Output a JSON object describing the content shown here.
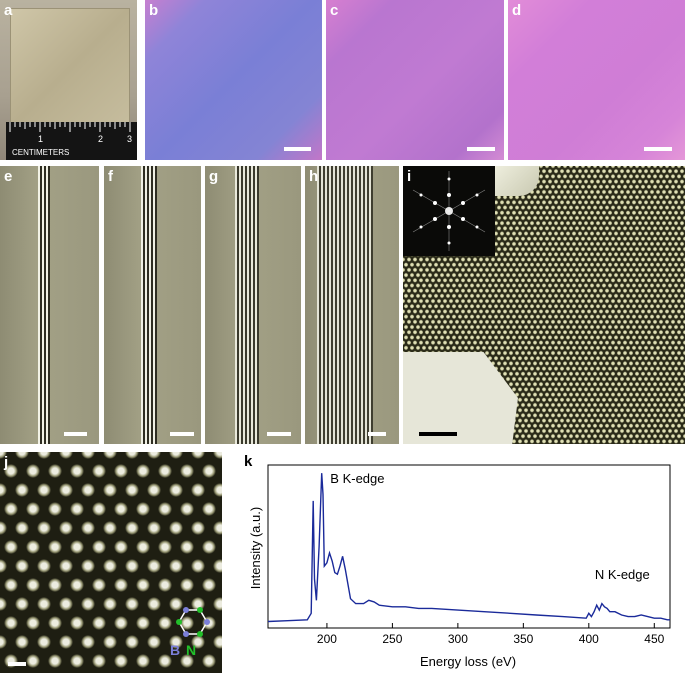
{
  "panels": {
    "a": {
      "label": "a",
      "ruler_text": "CENTIMETERS",
      "ruler_ticks": [
        "1",
        "2",
        "3"
      ]
    },
    "b": {
      "label": "b"
    },
    "c": {
      "label": "c"
    },
    "d": {
      "label": "d"
    },
    "e": {
      "label": "e"
    },
    "f": {
      "label": "f"
    },
    "g": {
      "label": "g"
    },
    "h": {
      "label": "h"
    },
    "i": {
      "label": "i"
    },
    "j": {
      "label": "j",
      "atom_b": "B",
      "atom_n": "N"
    },
    "k": {
      "label": "k"
    }
  },
  "colors": {
    "optical_blue": "#7f7fd4",
    "optical_magenta": "#c276d0",
    "optical_pink": "#d27ed8",
    "spectrum_line": "#1a2a9a",
    "boron_atom": "#7b7fd8",
    "nitrogen_atom": "#22c02a"
  },
  "chart_data": {
    "type": "line",
    "title": "",
    "xlabel": "Energy loss (eV)",
    "ylabel": "Intensity (a.u.)",
    "xlim": [
      155,
      462
    ],
    "ylim": [
      0,
      1
    ],
    "xticks": [
      "200",
      "250",
      "300",
      "350",
      "400",
      "450"
    ],
    "yticks": [],
    "annotations": [
      {
        "text": "B K-edge",
        "x": 198,
        "y": 0.92
      },
      {
        "text": "N K-edge",
        "x": 400,
        "y": 0.33
      }
    ],
    "series": [
      {
        "x": [
          155,
          170,
          185,
          188,
          189.5,
          190.5,
          192,
          194,
          196,
          197,
          198,
          200,
          202,
          204,
          206,
          208,
          210,
          212,
          214,
          216,
          218,
          222,
          228,
          232,
          236,
          240,
          250,
          260,
          270,
          280,
          300,
          320,
          340,
          360,
          380,
          398,
          400,
          402,
          404,
          406,
          408,
          410,
          412,
          414,
          416,
          420,
          425,
          430,
          435,
          440,
          445,
          450,
          455,
          460,
          462
        ],
        "y": [
          0.04,
          0.045,
          0.05,
          0.09,
          0.78,
          0.3,
          0.17,
          0.5,
          0.95,
          0.82,
          0.38,
          0.4,
          0.46,
          0.41,
          0.34,
          0.33,
          0.38,
          0.44,
          0.36,
          0.27,
          0.18,
          0.15,
          0.15,
          0.17,
          0.16,
          0.14,
          0.13,
          0.13,
          0.12,
          0.12,
          0.11,
          0.1,
          0.09,
          0.08,
          0.07,
          0.06,
          0.09,
          0.07,
          0.1,
          0.14,
          0.11,
          0.15,
          0.13,
          0.12,
          0.1,
          0.1,
          0.08,
          0.07,
          0.07,
          0.08,
          0.07,
          0.06,
          0.06,
          0.05,
          0.05
        ]
      }
    ]
  }
}
